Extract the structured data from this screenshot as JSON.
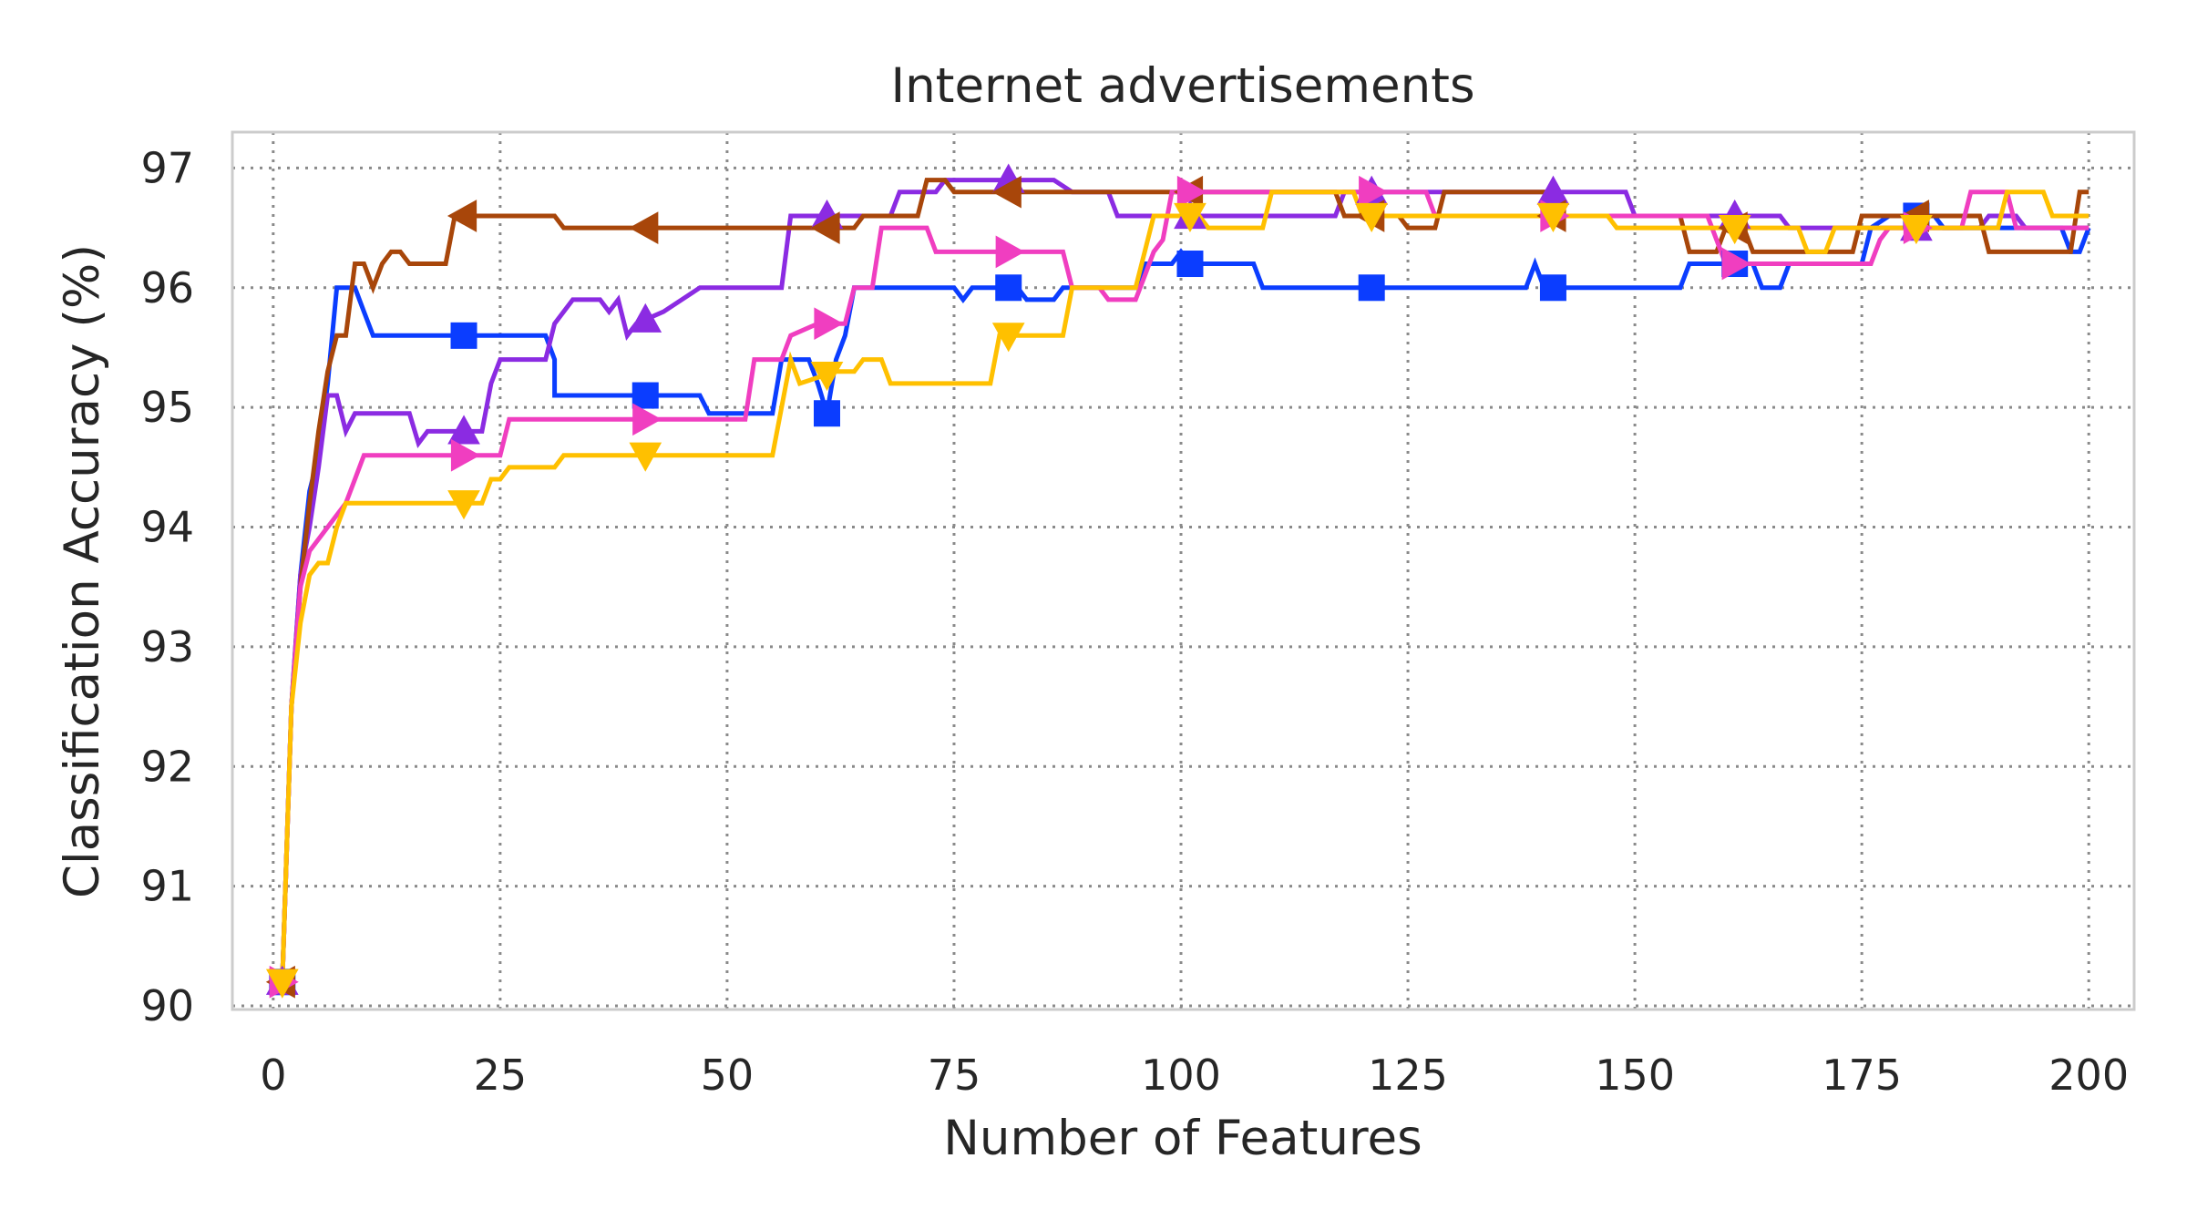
{
  "chart_data": {
    "type": "line",
    "title": "Internet advertisements",
    "xlabel": "Number of Features",
    "ylabel": "Classification Accuracy (%)",
    "xlim": [
      -4.5,
      205
    ],
    "ylim": [
      89.97,
      97.3
    ],
    "xticks": [
      0,
      25,
      50,
      75,
      100,
      125,
      150,
      175,
      200
    ],
    "yticks": [
      90,
      91,
      92,
      93,
      94,
      95,
      96,
      97
    ],
    "grid": true,
    "legend": null,
    "series": [
      {
        "color": "#0b3dff",
        "marker": "square",
        "marker_x": [
          1,
          21,
          41,
          61,
          81,
          101,
          121,
          141,
          161,
          181
        ],
        "points": [
          [
            1,
            90.2
          ],
          [
            2,
            92.5
          ],
          [
            3,
            93.6
          ],
          [
            4,
            94.3
          ],
          [
            5,
            94.6
          ],
          [
            6,
            95.2
          ],
          [
            7,
            96.0
          ],
          [
            9,
            96.0
          ],
          [
            10,
            95.8
          ],
          [
            11,
            95.6
          ],
          [
            30,
            95.6
          ],
          [
            31,
            95.4
          ],
          [
            31,
            95.1
          ],
          [
            47,
            95.1
          ],
          [
            48,
            94.95
          ],
          [
            55,
            94.95
          ],
          [
            56,
            95.4
          ],
          [
            59,
            95.4
          ],
          [
            60,
            95.2
          ],
          [
            61,
            94.95
          ],
          [
            62,
            95.4
          ],
          [
            63,
            95.6
          ],
          [
            64,
            96.0
          ],
          [
            75,
            96.0
          ],
          [
            76,
            95.9
          ],
          [
            77,
            96.0
          ],
          [
            82,
            96.0
          ],
          [
            83,
            95.9
          ],
          [
            86,
            95.9
          ],
          [
            87,
            96.0
          ],
          [
            95,
            96.0
          ],
          [
            96,
            96.2
          ],
          [
            99,
            96.2
          ],
          [
            100,
            96.3
          ],
          [
            101,
            96.2
          ],
          [
            108,
            96.2
          ],
          [
            109,
            96.0
          ],
          [
            138,
            96.0
          ],
          [
            139,
            96.2
          ],
          [
            140,
            96.0
          ],
          [
            155,
            96.0
          ],
          [
            156,
            96.2
          ],
          [
            163,
            96.2
          ],
          [
            164,
            96.0
          ],
          [
            166,
            96.0
          ],
          [
            167,
            96.2
          ],
          [
            175,
            96.2
          ],
          [
            176,
            96.5
          ],
          [
            178,
            96.6
          ],
          [
            183,
            96.6
          ],
          [
            184,
            96.5
          ],
          [
            197,
            96.5
          ],
          [
            198,
            96.3
          ],
          [
            199,
            96.3
          ],
          [
            200,
            96.5
          ]
        ]
      },
      {
        "color": "#8b2be2",
        "marker": "triangle-up",
        "marker_x": [
          1,
          21,
          41,
          61,
          81,
          101,
          121,
          141,
          161,
          181
        ],
        "points": [
          [
            1,
            90.2
          ],
          [
            2,
            92.5
          ],
          [
            3,
            93.6
          ],
          [
            4,
            94.0
          ],
          [
            5,
            94.5
          ],
          [
            6,
            95.1
          ],
          [
            7,
            95.1
          ],
          [
            8,
            94.8
          ],
          [
            9,
            94.95
          ],
          [
            15,
            94.95
          ],
          [
            16,
            94.7
          ],
          [
            17,
            94.8
          ],
          [
            23,
            94.8
          ],
          [
            24,
            95.2
          ],
          [
            25,
            95.4
          ],
          [
            30,
            95.4
          ],
          [
            31,
            95.7
          ],
          [
            33,
            95.9
          ],
          [
            36,
            95.9
          ],
          [
            37,
            95.8
          ],
          [
            38,
            95.9
          ],
          [
            39,
            95.6
          ],
          [
            40,
            95.7
          ],
          [
            43,
            95.8
          ],
          [
            45,
            95.9
          ],
          [
            47,
            96.0
          ],
          [
            56,
            96.0
          ],
          [
            57,
            96.6
          ],
          [
            68,
            96.6
          ],
          [
            69,
            96.8
          ],
          [
            73,
            96.8
          ],
          [
            74,
            96.9
          ],
          [
            86,
            96.9
          ],
          [
            88,
            96.8
          ],
          [
            92,
            96.8
          ],
          [
            93,
            96.6
          ],
          [
            117,
            96.6
          ],
          [
            118,
            96.8
          ],
          [
            149,
            96.8
          ],
          [
            150,
            96.6
          ],
          [
            166,
            96.6
          ],
          [
            167,
            96.5
          ],
          [
            188,
            96.5
          ],
          [
            189,
            96.6
          ],
          [
            192,
            96.6
          ],
          [
            193,
            96.5
          ],
          [
            200,
            96.5
          ]
        ]
      },
      {
        "color": "#a8460a",
        "marker": "triangle-left",
        "marker_x": [
          1,
          21,
          41,
          61,
          81,
          101,
          121,
          141,
          161,
          181
        ],
        "points": [
          [
            1,
            90.2
          ],
          [
            2,
            92.5
          ],
          [
            3,
            93.5
          ],
          [
            4,
            94.2
          ],
          [
            5,
            94.8
          ],
          [
            6,
            95.3
          ],
          [
            7,
            95.6
          ],
          [
            8,
            95.6
          ],
          [
            9,
            96.2
          ],
          [
            10,
            96.2
          ],
          [
            11,
            96.0
          ],
          [
            12,
            96.2
          ],
          [
            13,
            96.3
          ],
          [
            14,
            96.3
          ],
          [
            15,
            96.2
          ],
          [
            19,
            96.2
          ],
          [
            20,
            96.6
          ],
          [
            31,
            96.6
          ],
          [
            32,
            96.5
          ],
          [
            64,
            96.5
          ],
          [
            65,
            96.6
          ],
          [
            71,
            96.6
          ],
          [
            72,
            96.9
          ],
          [
            74,
            96.9
          ],
          [
            75,
            96.8
          ],
          [
            117,
            96.8
          ],
          [
            118,
            96.6
          ],
          [
            124,
            96.6
          ],
          [
            125,
            96.5
          ],
          [
            128,
            96.5
          ],
          [
            129,
            96.8
          ],
          [
            140,
            96.8
          ],
          [
            141,
            96.6
          ],
          [
            155,
            96.6
          ],
          [
            156,
            96.3
          ],
          [
            159,
            96.3
          ],
          [
            160,
            96.5
          ],
          [
            162,
            96.5
          ],
          [
            163,
            96.3
          ],
          [
            174,
            96.3
          ],
          [
            175,
            96.6
          ],
          [
            188,
            96.6
          ],
          [
            189,
            96.3
          ],
          [
            198,
            96.3
          ],
          [
            199,
            96.8
          ],
          [
            200,
            96.8
          ]
        ]
      },
      {
        "color": "#f03ec0",
        "marker": "triangle-right",
        "marker_x": [
          1,
          21,
          41,
          61,
          81,
          101,
          121,
          141,
          161,
          181
        ],
        "points": [
          [
            1,
            90.2
          ],
          [
            2,
            92.5
          ],
          [
            3,
            93.5
          ],
          [
            4,
            93.8
          ],
          [
            6,
            94.0
          ],
          [
            8,
            94.2
          ],
          [
            9,
            94.4
          ],
          [
            10,
            94.6
          ],
          [
            25,
            94.6
          ],
          [
            26,
            94.9
          ],
          [
            52,
            94.9
          ],
          [
            53,
            95.4
          ],
          [
            56,
            95.4
          ],
          [
            57,
            95.6
          ],
          [
            60,
            95.7
          ],
          [
            63,
            95.7
          ],
          [
            64,
            96.0
          ],
          [
            66,
            96.0
          ],
          [
            67,
            96.5
          ],
          [
            72,
            96.5
          ],
          [
            73,
            96.3
          ],
          [
            87,
            96.3
          ],
          [
            88,
            96.0
          ],
          [
            91,
            96.0
          ],
          [
            92,
            95.9
          ],
          [
            95,
            95.9
          ],
          [
            96,
            96.1
          ],
          [
            97,
            96.3
          ],
          [
            98,
            96.4
          ],
          [
            99,
            96.8
          ],
          [
            127,
            96.8
          ],
          [
            128,
            96.6
          ],
          [
            158,
            96.6
          ],
          [
            160,
            96.2
          ],
          [
            176,
            96.2
          ],
          [
            177,
            96.4
          ],
          [
            178,
            96.5
          ],
          [
            186,
            96.5
          ],
          [
            187,
            96.8
          ],
          [
            191,
            96.8
          ],
          [
            192,
            96.5
          ],
          [
            200,
            96.5
          ]
        ]
      },
      {
        "color": "#ffc000",
        "marker": "triangle-down",
        "marker_x": [
          1,
          21,
          41,
          61,
          81,
          101,
          121,
          141,
          161,
          181
        ],
        "points": [
          [
            1,
            90.2
          ],
          [
            2,
            92.5
          ],
          [
            3,
            93.2
          ],
          [
            4,
            93.6
          ],
          [
            5,
            93.7
          ],
          [
            6,
            93.7
          ],
          [
            7,
            94.0
          ],
          [
            8,
            94.2
          ],
          [
            23,
            94.2
          ],
          [
            24,
            94.4
          ],
          [
            25,
            94.4
          ],
          [
            26,
            94.5
          ],
          [
            31,
            94.5
          ],
          [
            32,
            94.6
          ],
          [
            55,
            94.6
          ],
          [
            56,
            95.0
          ],
          [
            57,
            95.4
          ],
          [
            58,
            95.2
          ],
          [
            62,
            95.3
          ],
          [
            64,
            95.3
          ],
          [
            65,
            95.4
          ],
          [
            67,
            95.4
          ],
          [
            68,
            95.2
          ],
          [
            79,
            95.2
          ],
          [
            80,
            95.6
          ],
          [
            87,
            95.6
          ],
          [
            88,
            96.0
          ],
          [
            95,
            96.0
          ],
          [
            96,
            96.3
          ],
          [
            97,
            96.6
          ],
          [
            102,
            96.6
          ],
          [
            103,
            96.5
          ],
          [
            109,
            96.5
          ],
          [
            110,
            96.8
          ],
          [
            119,
            96.8
          ],
          [
            120,
            96.6
          ],
          [
            147,
            96.6
          ],
          [
            148,
            96.5
          ],
          [
            168,
            96.5
          ],
          [
            169,
            96.3
          ],
          [
            171,
            96.3
          ],
          [
            172,
            96.5
          ],
          [
            190,
            96.5
          ],
          [
            191,
            96.8
          ],
          [
            195,
            96.8
          ],
          [
            196,
            96.6
          ],
          [
            200,
            96.6
          ]
        ]
      }
    ]
  }
}
